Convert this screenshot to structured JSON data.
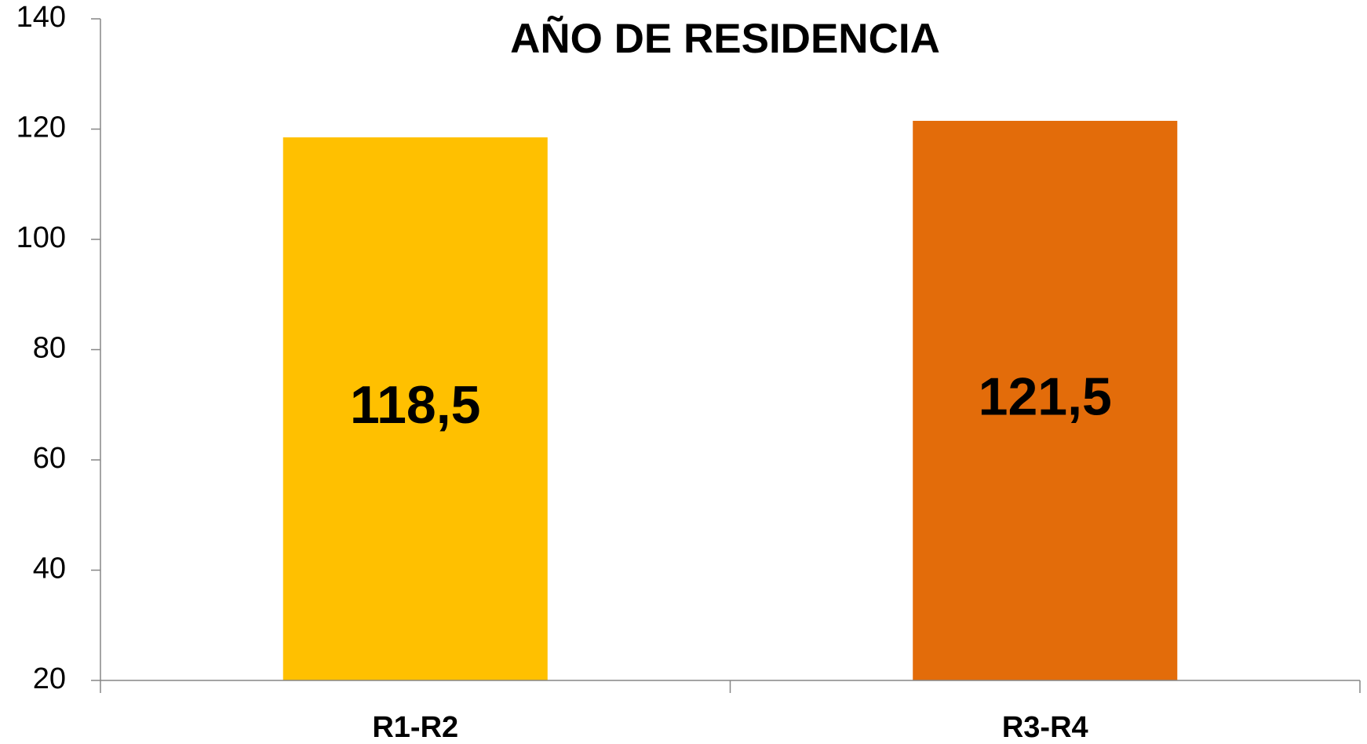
{
  "chart_data": {
    "type": "bar",
    "title": "AÑO DE RESIDENCIA",
    "categories": [
      "R1-R2",
      "R3-R4"
    ],
    "values": [
      118.5,
      121.5
    ],
    "value_labels": [
      "118,5",
      "121,5"
    ],
    "colors": [
      "#FFC000",
      "#E36C0A"
    ],
    "ylim": [
      20,
      140
    ],
    "yticks": [
      20,
      40,
      60,
      80,
      100,
      120,
      140
    ],
    "grid": false
  }
}
